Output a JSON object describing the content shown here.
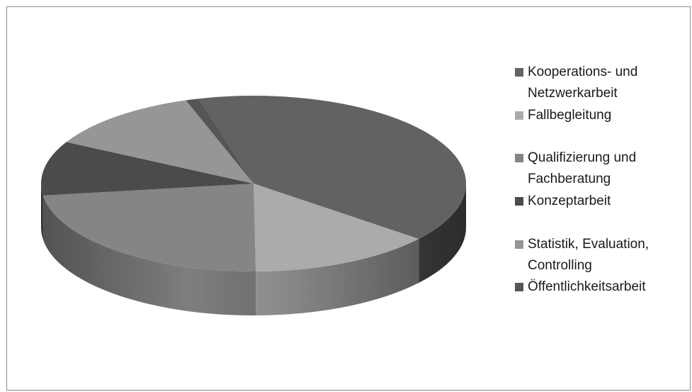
{
  "chart_data": {
    "type": "pie",
    "style": "3d",
    "title": "",
    "categories": [
      "Kooperations- und Netzwerkarbeit",
      "Fallbegleitung",
      "Qualifizierung und Fachberatung",
      "Konzeptarbeit",
      "Statistik, Evaluation, Controlling",
      "Öffentlichkeitsarbeit"
    ],
    "values": [
      40,
      14,
      23,
      10,
      12,
      1
    ],
    "colors": [
      "#626262",
      "#ababab",
      "#858585",
      "#4b4b4b",
      "#969696",
      "#555555"
    ],
    "legend": "right"
  },
  "legend": {
    "items": [
      {
        "label": "Kooperations- und\nNetzwerkarbeit",
        "color": "#626262"
      },
      {
        "label": "Fallbegleitung",
        "color": "#ababab"
      },
      {
        "label": "Qualifizierung und\nFachberatung",
        "color": "#858585"
      },
      {
        "label": "Konzeptarbeit",
        "color": "#4b4b4b"
      },
      {
        "label": "Statistik, Evaluation,\nControlling",
        "color": "#969696"
      },
      {
        "label": "Öffentlichkeitsarbeit",
        "color": "#555555"
      }
    ]
  }
}
